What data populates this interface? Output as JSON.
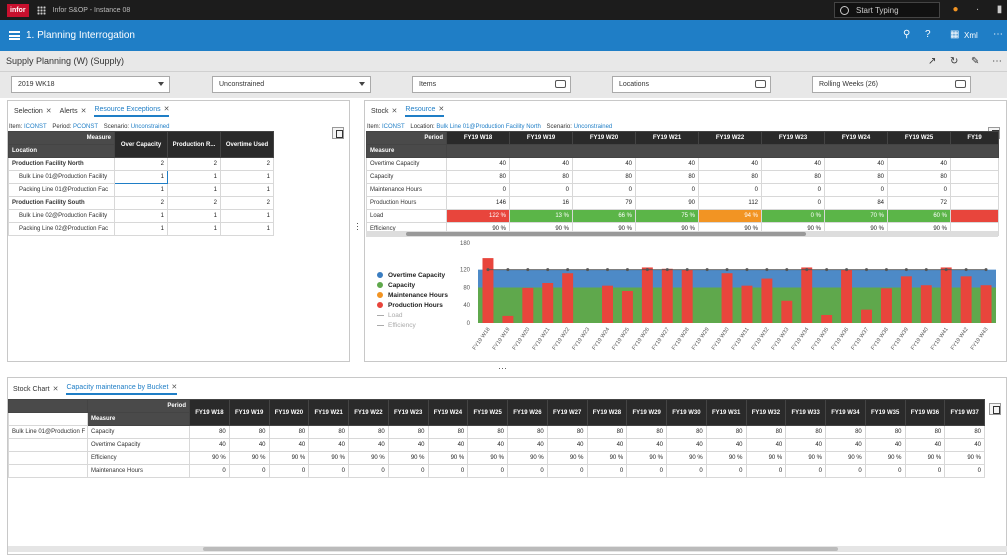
{
  "topbar": {
    "logo": "infor",
    "app": "Infor S&OP - Instance 08",
    "search_placeholder": "Start Typing"
  },
  "header": {
    "title": "1. Planning Interrogation",
    "xml": "Xml"
  },
  "subheader": {
    "title": "Supply Planning (W) (Supply)"
  },
  "filters": {
    "period": "2019 WK18",
    "scenario": "Unconstrained",
    "items": "Items",
    "locations": "Locations",
    "horizon": "Rolling Weeks (26)"
  },
  "left_panel": {
    "tabs": [
      "Selection",
      "Alerts",
      "Resource Exceptions"
    ],
    "context": {
      "item_label": "Item:",
      "item": "ICONST",
      "period_label": "Period:",
      "period": "PCONST",
      "scenario_label": "Scenario:",
      "scenario": "Unconstrained"
    },
    "measure_header": "Measure",
    "location_header": "Location",
    "columns": [
      "Over Capacity",
      "Production R...",
      "Overtime Used"
    ],
    "rows": [
      {
        "label": "Production Facility North",
        "values": [
          "2",
          "2",
          "2"
        ],
        "bold": true
      },
      {
        "label": "Bulk Line 01@Production Facility",
        "values": [
          "1",
          "1",
          "1"
        ],
        "indent": true
      },
      {
        "label": "Packing Line 01@Production Fac",
        "values": [
          "1",
          "1",
          "1"
        ],
        "indent": true
      },
      {
        "label": "Production Facility South",
        "values": [
          "2",
          "2",
          "2"
        ],
        "bold": true
      },
      {
        "label": "Bulk Line 02@Production Facility",
        "values": [
          "1",
          "1",
          "1"
        ],
        "indent": true
      },
      {
        "label": "Packing Line 02@Production Fac",
        "values": [
          "1",
          "1",
          "1"
        ],
        "indent": true
      }
    ]
  },
  "right_panel": {
    "tabs": [
      "Stock",
      "Resource"
    ],
    "context": {
      "item_label": "Item:",
      "item": "ICONST",
      "location_label": "Location:",
      "location": "Bulk Line 01@Production Facility North",
      "scenario_label": "Scenario:",
      "scenario": "Unconstrained"
    },
    "period_header": "Period",
    "measure_header": "Measure",
    "columns": [
      "FY19 W18",
      "FY19 W19",
      "FY19 W20",
      "FY19 W21",
      "FY19 W22",
      "FY19 W23",
      "FY19 W24",
      "FY19 W25",
      "FY19"
    ],
    "rows": [
      {
        "label": "Overtime Capacity",
        "values": [
          "40",
          "40",
          "40",
          "40",
          "40",
          "40",
          "40",
          "40",
          ""
        ]
      },
      {
        "label": "Capacity",
        "values": [
          "80",
          "80",
          "80",
          "80",
          "80",
          "80",
          "80",
          "80",
          ""
        ]
      },
      {
        "label": "Maintenance Hours",
        "values": [
          "0",
          "0",
          "0",
          "0",
          "0",
          "0",
          "0",
          "0",
          ""
        ]
      },
      {
        "label": "Production Hours",
        "values": [
          "146",
          "16",
          "79",
          "90",
          "112",
          "0",
          "84",
          "72",
          ""
        ]
      },
      {
        "label": "Load",
        "values": [
          "122 %",
          "13 %",
          "66 %",
          "75 %",
          "94 %",
          "0 %",
          "70 %",
          "60 %",
          ""
        ],
        "colors": [
          "r",
          "g",
          "g",
          "g",
          "o",
          "g",
          "g",
          "g",
          "r"
        ]
      },
      {
        "label": "Efficiency",
        "values": [
          "90 %",
          "90 %",
          "90 %",
          "90 %",
          "90 %",
          "90 %",
          "90 %",
          "90 %",
          ""
        ]
      }
    ]
  },
  "chart_data": {
    "type": "bar",
    "ylim": [
      0,
      180
    ],
    "yticks": [
      "0",
      "40",
      "80",
      "120",
      "180"
    ],
    "legend": [
      "Overtime Capacity",
      "Capacity",
      "Maintenance Hours",
      "Production Hours",
      "Load",
      "Efficiency"
    ],
    "categories": [
      "FY19 W18",
      "FY19 W19",
      "FY19 W20",
      "FY19 W21",
      "FY19 W22",
      "FY19 W23",
      "FY19 W24",
      "FY19 W25",
      "FY19 W26",
      "FY19 W27",
      "FY19 W28",
      "FY19 W29",
      "FY19 W30",
      "FY19 W31",
      "FY19 W32",
      "FY19 W33",
      "FY19 W34",
      "FY19 W35",
      "FY19 W36",
      "FY19 W37",
      "FY19 W38",
      "FY19 W39",
      "FY19 W40",
      "FY19 W41",
      "FY19 W42",
      "FY19 W43"
    ],
    "series": [
      {
        "name": "Overtime Capacity",
        "type": "area",
        "color": "#3a7dc1",
        "values": [
          120,
          120,
          120,
          120,
          120,
          120,
          120,
          120,
          120,
          120,
          120,
          120,
          120,
          120,
          120,
          120,
          120,
          120,
          120,
          120,
          120,
          120,
          120,
          120,
          120,
          120
        ]
      },
      {
        "name": "Capacity",
        "type": "area",
        "color": "#5fa84c",
        "values": [
          80,
          80,
          80,
          80,
          80,
          80,
          80,
          80,
          80,
          80,
          80,
          80,
          80,
          80,
          80,
          80,
          80,
          80,
          80,
          80,
          80,
          80,
          80,
          80,
          80,
          80
        ]
      },
      {
        "name": "Production Hours",
        "type": "bar",
        "color": "#e8453c",
        "values": [
          146,
          16,
          79,
          90,
          112,
          0,
          84,
          72,
          125,
          122,
          120,
          0,
          112,
          84,
          100,
          50,
          125,
          18,
          120,
          30,
          78,
          105,
          85,
          125,
          105,
          85
        ]
      }
    ]
  },
  "bottom_panel": {
    "tabs": [
      "Stock Chart",
      "Capacity maintenance by Bucket"
    ],
    "period_header": "Period",
    "measure_header": "Measure",
    "resource": "Bulk Line 01@Production F",
    "columns": [
      "FY19 W18",
      "FY19 W19",
      "FY19 W20",
      "FY19 W21",
      "FY19 W22",
      "FY19 W23",
      "FY19 W24",
      "FY19 W25",
      "FY19 W26",
      "FY19 W27",
      "FY19 W28",
      "FY19 W29",
      "FY19 W30",
      "FY19 W31",
      "FY19 W32",
      "FY19 W33",
      "FY19 W34",
      "FY19 W35",
      "FY19 W36",
      "FY19 W37"
    ],
    "rows": [
      {
        "label": "Capacity",
        "value": "80"
      },
      {
        "label": "Overtime Capacity",
        "value": "40"
      },
      {
        "label": "Efficiency",
        "value": "90 %"
      },
      {
        "label": "Maintenance Hours",
        "value": "0"
      }
    ]
  }
}
